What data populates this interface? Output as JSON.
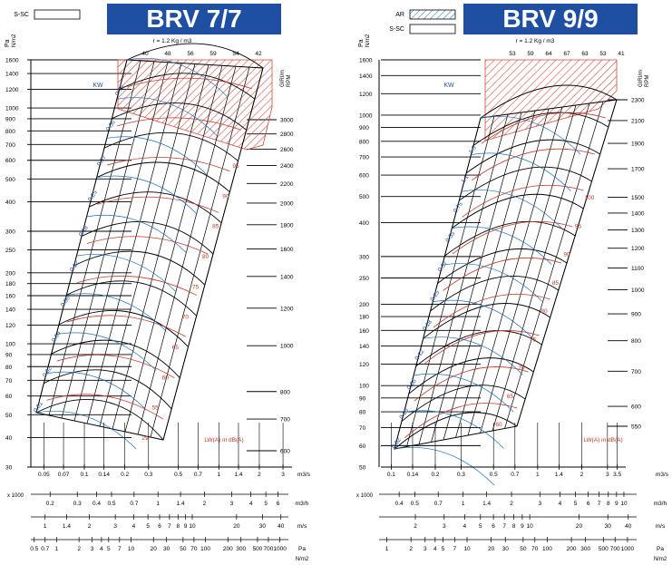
{
  "colors": {
    "black": "#000000",
    "blue": "#1a6fb5",
    "red": "#c0392b",
    "title_bg": "#1f4fa0",
    "hatch": "#d04a3a"
  },
  "chart_data": [
    {
      "type": "line",
      "title": "BRV 7/7",
      "legend_items": [
        "S-SC"
      ],
      "density_note": "r = 1.2 Kg / m3",
      "pressure_label_1": "Pa",
      "pressure_label_2": "N/m2",
      "kw_label": "KW",
      "sound_label": "LW(A) in dB(A)",
      "rpm_label_1": "GIRI/m",
      "rpm_label_2": "RPM",
      "flow_unit": "m3/s",
      "flow_unit_h": "m3/h",
      "flow_h_multiplier": "x 1000",
      "velocity_unit": "m/s",
      "pa_unit_1": "Pa",
      "pa_unit_2": "N/m2",
      "efficiency_ticks": [
        "40",
        "48",
        "56",
        "59",
        "54",
        "42"
      ],
      "y_ticks": [
        "1600",
        "1400",
        "1200",
        "1000",
        "900",
        "800",
        "700",
        "600",
        "500",
        "400",
        "300",
        "250",
        "200",
        "180",
        "160",
        "140",
        "120",
        "100",
        "90",
        "80",
        "70",
        "60",
        "50",
        "40",
        "30"
      ],
      "rpm_ticks": [
        "3000",
        "2800",
        "2600",
        "2400",
        "2200",
        "2000",
        "1800",
        "1600",
        "1400",
        "1200",
        "1000",
        "800",
        "700",
        "600"
      ],
      "kw_ticks": [
        "0.75",
        "0.56",
        "0.37",
        "0.25",
        "0.18",
        "0.12",
        "0.06",
        "0.04",
        "0.02",
        "0.01"
      ],
      "sound_ticks": [
        "95",
        "90",
        "85",
        "80",
        "75",
        "70",
        "65",
        "60",
        "55",
        "29"
      ],
      "x_ticks": [
        "0.05",
        "0.07",
        "0.1",
        "0.14",
        "0.2",
        "0.3",
        "0.5",
        "0.7",
        "1",
        "1.4",
        "2",
        "3"
      ],
      "xh_ticks": [
        "0.2",
        "0.3",
        "0.4",
        "0.5",
        "0.7",
        "1",
        "1.4",
        "2",
        "3",
        "4",
        "5",
        "6"
      ],
      "v_ticks": [
        "1",
        "1.4",
        "2",
        "3",
        "4",
        "5",
        "6",
        "7",
        "8",
        "9",
        "10",
        "20",
        "30",
        "40"
      ],
      "pa_ticks": [
        "0.5",
        "0.7",
        "1",
        "2",
        "3",
        "4",
        "5",
        "7",
        "10",
        "20",
        "30",
        "50",
        "70",
        "100",
        "200",
        "300",
        "500",
        "700",
        "1000"
      ]
    },
    {
      "type": "line",
      "title": "BRV 9/9",
      "legend_items": [
        "AR",
        "S-SC"
      ],
      "density_note": "r = 1.2 Kg / m3",
      "pressure_label_1": "Pa",
      "pressure_label_2": "N/m2",
      "kw_label": "KW",
      "sound_label": "LW(A) in dB(A)",
      "rpm_label_1": "GIRI/m",
      "rpm_label_2": "RPM",
      "flow_unit": "m3/s",
      "flow_unit_h": "m3/h",
      "flow_h_multiplier": "x 1000",
      "velocity_unit": "m/s",
      "pa_unit_1": "Pa",
      "pa_unit_2": "N/m2",
      "efficiency_ticks": [
        "53",
        "59",
        "64",
        "67",
        "63",
        "53",
        "41"
      ],
      "y_ticks": [
        "1600",
        "1400",
        "1200",
        "1000",
        "900",
        "800",
        "700",
        "600",
        "500",
        "400",
        "300",
        "250",
        "200",
        "180",
        "160",
        "140",
        "120",
        "100",
        "90",
        "80",
        "70",
        "60",
        "50"
      ],
      "rpm_ticks": [
        "2300",
        "2100",
        "1900",
        "1700",
        "1500",
        "1400",
        "1300",
        "1200",
        "1100",
        "1000",
        "900",
        "800",
        "700",
        "600",
        "550"
      ],
      "kw_ticks": [
        "1.5",
        "1.1",
        "0.75",
        "0.55",
        "0.37",
        "0.25",
        "0.18",
        "0.12",
        "0.06",
        "0.03",
        "0.02"
      ],
      "sound_ticks": [
        "100",
        "95",
        "90",
        "85",
        "80",
        "75",
        "70",
        "65",
        "60"
      ],
      "x_ticks": [
        "0.1",
        "0.14",
        "0.2",
        "0.3",
        "0.5",
        "0.7",
        "1",
        "1.4",
        "2",
        "3",
        "3.5"
      ],
      "xh_ticks": [
        "0.4",
        "0.5",
        "0.7",
        "1",
        "1.4",
        "2",
        "3",
        "4",
        "5",
        "6",
        "7",
        "8",
        "9",
        "10"
      ],
      "v_ticks": [
        "2",
        "3",
        "4",
        "5",
        "6",
        "7",
        "8",
        "9",
        "10",
        "20",
        "30",
        "40"
      ],
      "pa_ticks": [
        "1",
        "2",
        "3",
        "4",
        "5",
        "7",
        "10",
        "20",
        "30",
        "50",
        "70",
        "100",
        "200",
        "300",
        "500",
        "700",
        "1000"
      ]
    }
  ]
}
